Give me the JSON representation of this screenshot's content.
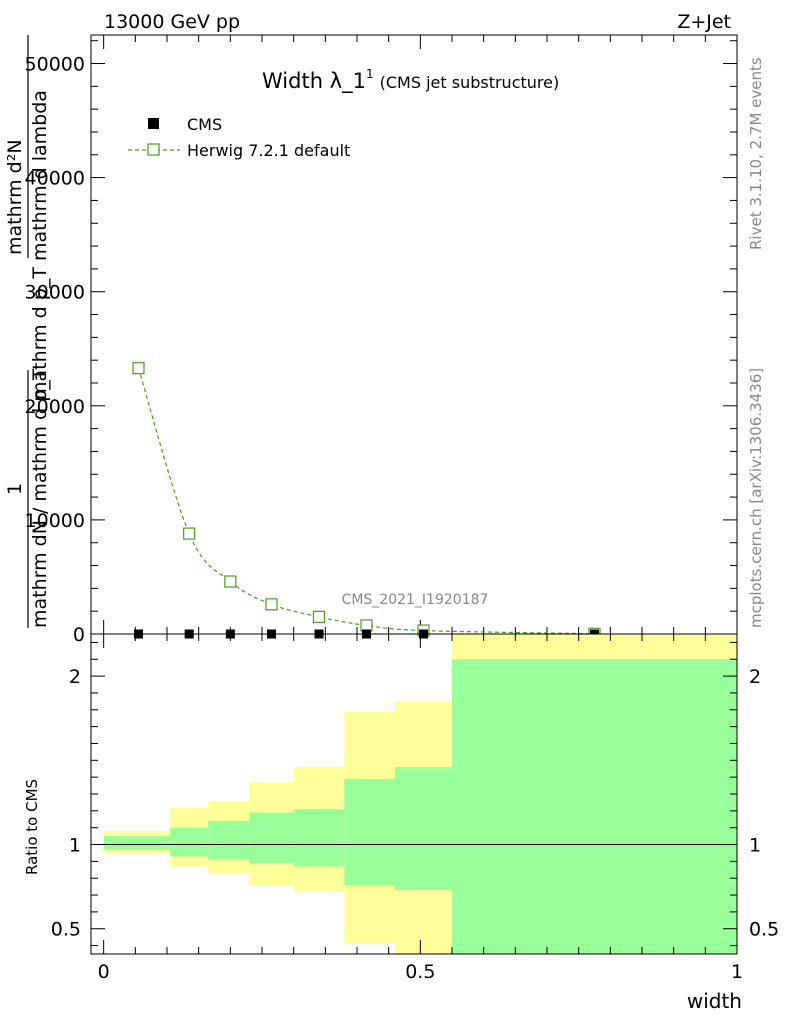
{
  "header": {
    "energy": "13000 GeV pp",
    "process": "Z+Jet"
  },
  "side_text": {
    "rivet": "Rivet 3.1.10,  2.7M events",
    "site": "mcplots.cern.ch [arXiv:1306.3436]"
  },
  "watermark": "CMS_2021_I1920187",
  "chart_data": [
    {
      "type": "line",
      "title_main": "Width λ_1",
      "title_sup": "1",
      "title_sub": "(CMS jet substructure)",
      "ylabel": {
        "numerator": "1",
        "denominator": "mathrm dN / mathrm d p_T mathrm d p_T mathrm d lambda",
        "outer_numerator": "mathrm d²N",
        "full": "1 / (mathrm dN / mathrm d p_T) · mathrm d²N / (mathrm d p_T mathrm d lambda)"
      },
      "ylabel_fragments": {
        "top": "mathrm d²N",
        "mid": "mathrm d p_T mathrm d lambda",
        "one": "1",
        "bottom": "mathrm dN / mathrm d p_T"
      },
      "xlim": [
        -0.02,
        1.0
      ],
      "ylim": [
        0,
        52500
      ],
      "yticks": [
        0,
        10000,
        20000,
        30000,
        40000,
        50000
      ],
      "ytick_labels": [
        "0",
        "10000",
        "20000",
        "30000",
        "40000",
        "50000"
      ],
      "legend": [
        {
          "name": "CMS",
          "marker": "filled-square",
          "color": "#000000"
        },
        {
          "name": "Herwig 7.2.1 default",
          "marker": "open-square",
          "color": "#4a9a1a"
        }
      ],
      "legend_placement": "top-left",
      "series": [
        {
          "name": "CMS",
          "x": [
            0.055,
            0.135,
            0.2,
            0.265,
            0.34,
            0.415,
            0.505,
            0.775
          ],
          "y": [
            0,
            0,
            0,
            0,
            0,
            0,
            0,
            0
          ]
        },
        {
          "name": "Herwig 7.2.1 default",
          "x": [
            0.055,
            0.135,
            0.2,
            0.265,
            0.34,
            0.415,
            0.505,
            0.775
          ],
          "y": [
            23300,
            8800,
            4600,
            2600,
            1500,
            750,
            300,
            20
          ]
        }
      ]
    },
    {
      "type": "area",
      "ylabel": "Ratio to CMS",
      "xlabel": "width",
      "xlim": [
        -0.02,
        1.0
      ],
      "ylim": [
        0.35,
        2.25
      ],
      "xticks": [
        0,
        0.5,
        1
      ],
      "xtick_labels": [
        "0",
        "0.5",
        "1"
      ],
      "yticks": [
        0.5,
        1,
        2
      ],
      "ytick_labels": [
        "0.5",
        "1",
        "2"
      ],
      "bins": [
        {
          "x0": 0.0,
          "x1": 0.105,
          "green": [
            0.97,
            1.05
          ],
          "yellow": [
            0.95,
            1.08
          ]
        },
        {
          "x0": 0.105,
          "x1": 0.165,
          "green": [
            0.93,
            1.1
          ],
          "yellow": [
            0.87,
            1.22
          ]
        },
        {
          "x0": 0.165,
          "x1": 0.23,
          "green": [
            0.91,
            1.14
          ],
          "yellow": [
            0.83,
            1.26
          ]
        },
        {
          "x0": 0.23,
          "x1": 0.3,
          "green": [
            0.89,
            1.19
          ],
          "yellow": [
            0.76,
            1.37
          ]
        },
        {
          "x0": 0.3,
          "x1": 0.38,
          "green": [
            0.87,
            1.21
          ],
          "yellow": [
            0.72,
            1.46
          ]
        },
        {
          "x0": 0.38,
          "x1": 0.46,
          "green": [
            0.76,
            1.39
          ],
          "yellow": [
            0.41,
            1.79
          ]
        },
        {
          "x0": 0.46,
          "x1": 0.55,
          "green": [
            0.73,
            1.46
          ],
          "yellow": [
            0.35,
            1.85
          ]
        },
        {
          "x0": 0.55,
          "x1": 1.0,
          "green": [
            0.35,
            2.1
          ],
          "yellow": [
            0.35,
            2.25
          ]
        }
      ],
      "reference_line": 1
    }
  ]
}
